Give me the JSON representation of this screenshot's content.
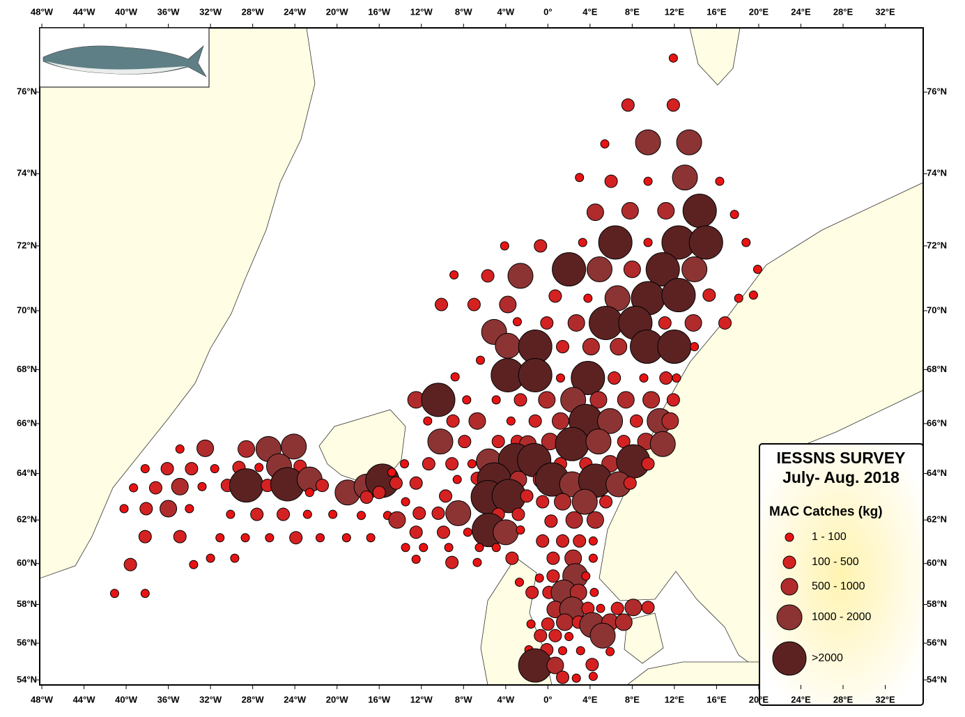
{
  "chart_data": {
    "type": "bubble-map",
    "title": "IESSNS SURVEY",
    "subtitle": "July- Aug. 2018",
    "legend_title": "MAC Catches (kg)",
    "xlim": [
      -48.2,
      35.6
    ],
    "ylim": [
      53.8,
      77.4
    ],
    "xticks": [
      {
        "value": -48,
        "label": "48°W"
      },
      {
        "value": -44,
        "label": "44°W"
      },
      {
        "value": -40,
        "label": "40°W"
      },
      {
        "value": -36,
        "label": "36°W"
      },
      {
        "value": -32,
        "label": "32°W"
      },
      {
        "value": -28,
        "label": "28°W"
      },
      {
        "value": -24,
        "label": "24°W"
      },
      {
        "value": -20,
        "label": "20°W"
      },
      {
        "value": -16,
        "label": "16°W"
      },
      {
        "value": -12,
        "label": "12°W"
      },
      {
        "value": -8,
        "label": "8°W"
      },
      {
        "value": -4,
        "label": "4°W"
      },
      {
        "value": 0,
        "label": "0°"
      },
      {
        "value": 4,
        "label": "4°E"
      },
      {
        "value": 8,
        "label": "8°E"
      },
      {
        "value": 12,
        "label": "12°E"
      },
      {
        "value": 16,
        "label": "16°E"
      },
      {
        "value": 20,
        "label": "20°E"
      },
      {
        "value": 24,
        "label": "24°E"
      },
      {
        "value": 28,
        "label": "28°E"
      },
      {
        "value": 32,
        "label": "32°E"
      }
    ],
    "yticks": [
      {
        "value": 54,
        "label": "54°N"
      },
      {
        "value": 56,
        "label": "56°N"
      },
      {
        "value": 58,
        "label": "58°N"
      },
      {
        "value": 60,
        "label": "60°N"
      },
      {
        "value": 62,
        "label": "62°N"
      },
      {
        "value": 64,
        "label": "64°N"
      },
      {
        "value": 66,
        "label": "66°N"
      },
      {
        "value": 68,
        "label": "68°N"
      },
      {
        "value": 70,
        "label": "70°N"
      },
      {
        "value": 72,
        "label": "72°N"
      },
      {
        "value": 74,
        "label": "74°N"
      },
      {
        "value": 76,
        "label": "76°N"
      }
    ],
    "classes": [
      {
        "label": "1 - 100",
        "color": "#e81414"
      },
      {
        "label": "100 - 500",
        "color": "#d42222"
      },
      {
        "label": "500 - 1000",
        "color": "#b02c2c"
      },
      {
        "label": "1000 - 2000",
        "color": "#8c3434"
      },
      {
        "label": ">2000",
        "color": "#5c2222"
      }
    ],
    "stations": [
      [
        11.9,
        76.76,
        0
      ],
      [
        7.6,
        75.7,
        1
      ],
      [
        11.9,
        75.7,
        1
      ],
      [
        5.4,
        74.76,
        0
      ],
      [
        9.5,
        74.8,
        3
      ],
      [
        13.4,
        74.8,
        3
      ],
      [
        3.0,
        73.9,
        0
      ],
      [
        6.0,
        73.8,
        1
      ],
      [
        9.5,
        73.8,
        0
      ],
      [
        13.0,
        73.9,
        3
      ],
      [
        16.3,
        73.8,
        0
      ],
      [
        4.5,
        72.96,
        2
      ],
      [
        7.8,
        73.0,
        2
      ],
      [
        11.2,
        73.0,
        2
      ],
      [
        14.4,
        73.0,
        4
      ],
      [
        17.7,
        72.9,
        0
      ],
      [
        -4.1,
        72.0,
        0
      ],
      [
        -0.7,
        72.0,
        1
      ],
      [
        3.3,
        72.1,
        0
      ],
      [
        6.4,
        72.1,
        4
      ],
      [
        9.5,
        72.1,
        0
      ],
      [
        12.4,
        72.1,
        4
      ],
      [
        15.0,
        72.1,
        4
      ],
      [
        18.8,
        72.1,
        0
      ],
      [
        -8.9,
        71.13,
        0
      ],
      [
        -5.7,
        71.1,
        1
      ],
      [
        -2.6,
        71.1,
        3
      ],
      [
        2.0,
        71.3,
        4
      ],
      [
        4.9,
        71.3,
        3
      ],
      [
        8.0,
        71.3,
        2
      ],
      [
        10.9,
        71.3,
        4
      ],
      [
        13.9,
        71.3,
        3
      ],
      [
        19.9,
        71.3,
        0
      ],
      [
        0.7,
        70.47,
        1
      ],
      [
        3.8,
        70.4,
        0
      ],
      [
        6.6,
        70.4,
        3
      ],
      [
        9.5,
        70.4,
        4
      ],
      [
        12.4,
        70.5,
        4
      ],
      [
        15.3,
        70.5,
        1
      ],
      [
        18.1,
        70.4,
        0
      ],
      [
        19.5,
        70.5,
        0
      ],
      [
        -10.1,
        70.2,
        1
      ],
      [
        -7.0,
        70.2,
        1
      ],
      [
        -3.8,
        70.2,
        2
      ],
      [
        -2.9,
        69.64,
        0
      ],
      [
        -0.1,
        69.6,
        1
      ],
      [
        2.7,
        69.6,
        2
      ],
      [
        5.5,
        69.6,
        4
      ],
      [
        8.3,
        69.6,
        4
      ],
      [
        11.1,
        69.6,
        1
      ],
      [
        13.8,
        69.6,
        2
      ],
      [
        16.8,
        69.6,
        1
      ],
      [
        -5.1,
        69.3,
        3
      ],
      [
        -3.8,
        68.83,
        3
      ],
      [
        -1.2,
        68.8,
        4
      ],
      [
        1.4,
        68.8,
        1
      ],
      [
        4.1,
        68.8,
        2
      ],
      [
        6.7,
        68.8,
        2
      ],
      [
        9.4,
        68.8,
        4
      ],
      [
        12.0,
        68.8,
        4
      ],
      [
        13.9,
        68.8,
        0
      ],
      [
        -6.4,
        68.33,
        0
      ],
      [
        -8.8,
        67.74,
        0
      ],
      [
        -3.8,
        67.8,
        4
      ],
      [
        -1.2,
        67.8,
        4
      ],
      [
        1.2,
        67.7,
        0
      ],
      [
        3.8,
        67.7,
        4
      ],
      [
        6.3,
        67.7,
        1
      ],
      [
        9.1,
        67.7,
        0
      ],
      [
        11.2,
        67.7,
        1
      ],
      [
        12.2,
        67.7,
        0
      ],
      [
        -12.5,
        66.9,
        2
      ],
      [
        -10.4,
        66.9,
        4
      ],
      [
        -7.7,
        66.9,
        0
      ],
      [
        -4.9,
        66.9,
        0
      ],
      [
        -2.6,
        66.9,
        1
      ],
      [
        -0.1,
        66.9,
        2
      ],
      [
        2.4,
        66.9,
        3
      ],
      [
        4.8,
        66.9,
        2
      ],
      [
        7.4,
        66.9,
        2
      ],
      [
        9.8,
        66.9,
        2
      ],
      [
        11.9,
        66.9,
        1
      ],
      [
        -11.4,
        66.1,
        0
      ],
      [
        -9.0,
        66.1,
        1
      ],
      [
        -6.7,
        66.1,
        2
      ],
      [
        -3.5,
        66.1,
        0
      ],
      [
        -1.2,
        66.1,
        1
      ],
      [
        1.2,
        66.1,
        2
      ],
      [
        3.6,
        66.1,
        4
      ],
      [
        5.9,
        66.1,
        3
      ],
      [
        8.4,
        66.1,
        1
      ],
      [
        10.6,
        66.1,
        3
      ],
      [
        11.6,
        66.1,
        2
      ],
      [
        -32.5,
        65.03,
        2
      ],
      [
        -34.9,
        65.0,
        0
      ],
      [
        -28.6,
        65.0,
        2
      ],
      [
        -26.5,
        65.0,
        3
      ],
      [
        -24.1,
        65.1,
        3
      ],
      [
        -10.2,
        65.3,
        3
      ],
      [
        -7.9,
        65.3,
        1
      ],
      [
        -4.7,
        65.3,
        1
      ],
      [
        -2.9,
        65.3,
        1
      ],
      [
        -1.9,
        65.2,
        2
      ],
      [
        0.2,
        65.3,
        2
      ],
      [
        2.3,
        65.2,
        4
      ],
      [
        4.8,
        65.3,
        3
      ],
      [
        7.2,
        65.3,
        1
      ],
      [
        9.3,
        65.3,
        2
      ],
      [
        10.9,
        65.2,
        3
      ],
      [
        -38.2,
        64.2,
        0
      ],
      [
        -36.1,
        64.2,
        1
      ],
      [
        -33.8,
        64.2,
        1
      ],
      [
        -31.6,
        64.2,
        0
      ],
      [
        -29.3,
        64.25,
        1
      ],
      [
        -27.4,
        64.25,
        0
      ],
      [
        -25.5,
        64.3,
        3
      ],
      [
        -23.5,
        64.3,
        1
      ],
      [
        -13.6,
        64.4,
        0
      ],
      [
        -11.3,
        64.4,
        1
      ],
      [
        -9.1,
        64.4,
        1
      ],
      [
        -7.2,
        64.4,
        0
      ],
      [
        -5.6,
        64.5,
        3
      ],
      [
        -3.1,
        64.55,
        4
      ],
      [
        -1.3,
        64.55,
        4
      ],
      [
        1.2,
        64.4,
        1
      ],
      [
        3.6,
        64.4,
        1
      ],
      [
        5.9,
        64.4,
        2
      ],
      [
        8.1,
        64.5,
        4
      ],
      [
        9.5,
        64.4,
        1
      ],
      [
        -39.3,
        63.4,
        0
      ],
      [
        -37.2,
        63.4,
        1
      ],
      [
        -34.9,
        63.45,
        2
      ],
      [
        -32.8,
        63.45,
        0
      ],
      [
        -30.4,
        63.5,
        1
      ],
      [
        -28.6,
        63.5,
        4
      ],
      [
        -26.6,
        63.5,
        1
      ],
      [
        -24.7,
        63.55,
        4
      ],
      [
        -22.6,
        63.75,
        3
      ],
      [
        -21.4,
        63.5,
        1
      ],
      [
        -22.6,
        63.2,
        0
      ],
      [
        -19.0,
        63.2,
        3
      ],
      [
        -17.2,
        63.45,
        3
      ],
      [
        -15.7,
        63.7,
        4
      ],
      [
        -14.8,
        64.05,
        0
      ],
      [
        -14.4,
        63.6,
        1
      ],
      [
        -16.0,
        63.2,
        1
      ],
      [
        -17.2,
        63.0,
        1
      ],
      [
        -12.5,
        63.6,
        1
      ],
      [
        -8.6,
        63.75,
        0
      ],
      [
        -6.7,
        63.8,
        1
      ],
      [
        -5.1,
        63.75,
        4
      ],
      [
        -2.8,
        63.75,
        2
      ],
      [
        -0.6,
        63.75,
        2
      ],
      [
        0.4,
        63.75,
        4
      ],
      [
        2.3,
        63.55,
        3
      ],
      [
        4.5,
        63.7,
        4
      ],
      [
        6.7,
        63.55,
        3
      ],
      [
        7.8,
        63.6,
        1
      ],
      [
        -38.1,
        62.5,
        1
      ],
      [
        -36.0,
        62.5,
        2
      ],
      [
        -34.0,
        62.5,
        0
      ],
      [
        -40.2,
        62.5,
        0
      ],
      [
        -13.5,
        62.8,
        0
      ],
      [
        -12.2,
        62.3,
        1
      ],
      [
        -10.4,
        62.3,
        1
      ],
      [
        -9.7,
        63.05,
        1
      ],
      [
        -8.5,
        62.3,
        3
      ],
      [
        -5.7,
        63.0,
        4
      ],
      [
        -3.7,
        63.05,
        4
      ],
      [
        -2.0,
        63.05,
        1
      ],
      [
        -0.5,
        62.8,
        1
      ],
      [
        1.4,
        62.8,
        2
      ],
      [
        3.5,
        62.8,
        3
      ],
      [
        5.5,
        62.8,
        1
      ],
      [
        -30.1,
        62.25,
        0
      ],
      [
        -27.6,
        62.25,
        1
      ],
      [
        -25.1,
        62.25,
        1
      ],
      [
        -22.8,
        62.25,
        0
      ],
      [
        -20.4,
        62.25,
        0
      ],
      [
        -17.7,
        62.2,
        0
      ],
      [
        -15.2,
        62.2,
        0
      ],
      [
        -14.3,
        62.0,
        2
      ],
      [
        -4.7,
        62.25,
        1
      ],
      [
        -2.8,
        62.25,
        1
      ],
      [
        0.3,
        61.95,
        1
      ],
      [
        2.5,
        62.0,
        2
      ],
      [
        4.5,
        62.0,
        2
      ],
      [
        -38.2,
        61.25,
        1
      ],
      [
        -34.9,
        61.25,
        1
      ],
      [
        -31.1,
        61.2,
        0
      ],
      [
        -28.7,
        61.2,
        0
      ],
      [
        -26.4,
        61.2,
        0
      ],
      [
        -23.9,
        61.2,
        1
      ],
      [
        -21.6,
        61.2,
        0
      ],
      [
        -19.1,
        61.2,
        0
      ],
      [
        -16.8,
        61.2,
        0
      ],
      [
        -12.5,
        61.45,
        1
      ],
      [
        -9.9,
        61.45,
        1
      ],
      [
        -7.6,
        61.45,
        0
      ],
      [
        -5.6,
        61.55,
        4
      ],
      [
        -4.0,
        61.45,
        3
      ],
      [
        -2.6,
        61.55,
        0
      ],
      [
        -0.5,
        61.05,
        1
      ],
      [
        1.4,
        61.05,
        1
      ],
      [
        3.0,
        61.05,
        1
      ],
      [
        4.3,
        61.05,
        0
      ],
      [
        -39.6,
        59.95,
        1
      ],
      [
        -33.6,
        59.95,
        0
      ],
      [
        -32.0,
        60.25,
        0
      ],
      [
        -29.7,
        60.25,
        0
      ],
      [
        -13.5,
        60.75,
        0
      ],
      [
        -11.8,
        60.75,
        0
      ],
      [
        -9.4,
        60.75,
        0
      ],
      [
        -6.5,
        60.75,
        0
      ],
      [
        -4.9,
        60.75,
        0
      ],
      [
        -12.5,
        60.2,
        0
      ],
      [
        -9.1,
        60.05,
        1
      ],
      [
        -6.7,
        60.05,
        0
      ],
      [
        -3.4,
        60.25,
        1
      ],
      [
        0.5,
        60.25,
        1
      ],
      [
        2.4,
        60.25,
        2
      ],
      [
        4.3,
        60.25,
        0
      ],
      [
        -41.1,
        58.55,
        0
      ],
      [
        -38.2,
        58.55,
        0
      ],
      [
        -0.8,
        59.3,
        0
      ],
      [
        0.5,
        59.4,
        1
      ],
      [
        2.6,
        59.4,
        3
      ],
      [
        3.6,
        59.4,
        0
      ],
      [
        -2.7,
        59.1,
        0
      ],
      [
        -1.5,
        58.6,
        1
      ],
      [
        0.1,
        58.6,
        1
      ],
      [
        1.5,
        58.6,
        3
      ],
      [
        2.9,
        58.6,
        2
      ],
      [
        4.4,
        58.6,
        0
      ],
      [
        0.7,
        57.75,
        2
      ],
      [
        2.3,
        57.75,
        3
      ],
      [
        3.8,
        57.8,
        1
      ],
      [
        5.0,
        57.8,
        0
      ],
      [
        6.6,
        57.8,
        1
      ],
      [
        8.1,
        57.85,
        2
      ],
      [
        9.5,
        57.85,
        1
      ],
      [
        -1.6,
        57.0,
        0
      ],
      [
        0.0,
        57.0,
        1
      ],
      [
        1.6,
        57.1,
        2
      ],
      [
        2.9,
        57.1,
        1
      ],
      [
        4.2,
        56.95,
        3
      ],
      [
        5.9,
        57.1,
        2
      ],
      [
        7.2,
        57.1,
        2
      ],
      [
        -0.7,
        56.4,
        1
      ],
      [
        0.7,
        56.4,
        1
      ],
      [
        2.0,
        56.35,
        0
      ],
      [
        5.2,
        56.4,
        3
      ],
      [
        -1.8,
        55.65,
        0
      ],
      [
        -0.1,
        55.65,
        1
      ],
      [
        1.4,
        55.6,
        0
      ],
      [
        3.1,
        55.6,
        0
      ],
      [
        5.9,
        55.55,
        0
      ],
      [
        -1.2,
        54.8,
        4
      ],
      [
        0.7,
        54.8,
        2
      ],
      [
        4.2,
        54.85,
        1
      ],
      [
        1.4,
        54.15,
        1
      ],
      [
        2.7,
        54.1,
        0
      ],
      [
        4.3,
        54.2,
        0
      ]
    ]
  }
}
